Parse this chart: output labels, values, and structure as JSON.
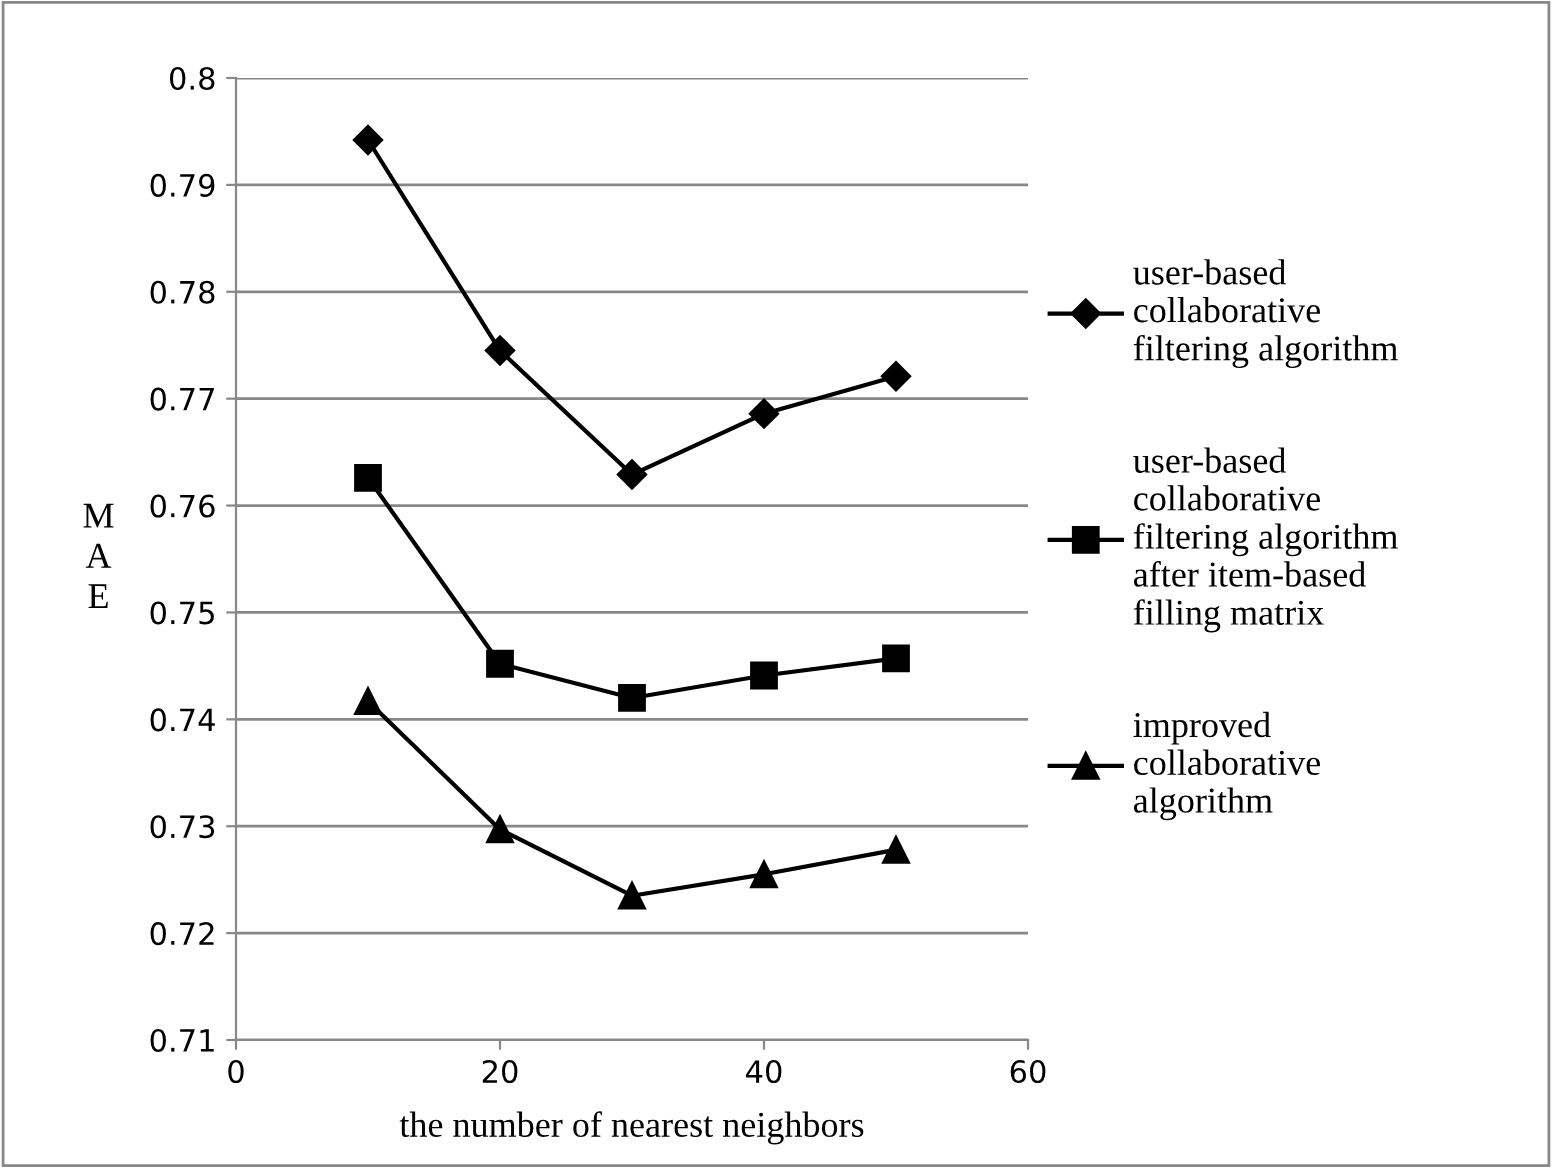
{
  "chart_data": {
    "type": "line",
    "xlabel": "the number of nearest neighbors",
    "ylabel": "MAE",
    "x": [
      10,
      20,
      30,
      40,
      50
    ],
    "series": [
      {
        "name": "user-based\ncollaborative\nfiltering algorithm",
        "color": "#000000",
        "marker": "diamond",
        "values": [
          0.7942,
          0.7745,
          0.7629,
          0.7686,
          0.7721
        ]
      },
      {
        "name": "user-based\ncollaborative\nfiltering algorithm\nafter item-based\nfilling matrix",
        "color": "#000000",
        "marker": "square",
        "values": [
          0.7626,
          0.7452,
          0.742,
          0.7441,
          0.7457
        ]
      },
      {
        "name": "improved\ncollaborative\nalgorithm",
        "color": "#000000",
        "marker": "triangle",
        "values": [
          0.7417,
          0.7297,
          0.7235,
          0.7255,
          0.7278
        ]
      }
    ],
    "xlim": [
      0,
      60
    ],
    "xticks": [
      0,
      20,
      40,
      60
    ],
    "ylim": [
      0.71,
      0.8
    ],
    "yticks": [
      0.71,
      0.72,
      0.73,
      0.74,
      0.75,
      0.76,
      0.77,
      0.78,
      0.79,
      0.8
    ],
    "grid": "y",
    "legend": "right",
    "line_style": "solid"
  }
}
